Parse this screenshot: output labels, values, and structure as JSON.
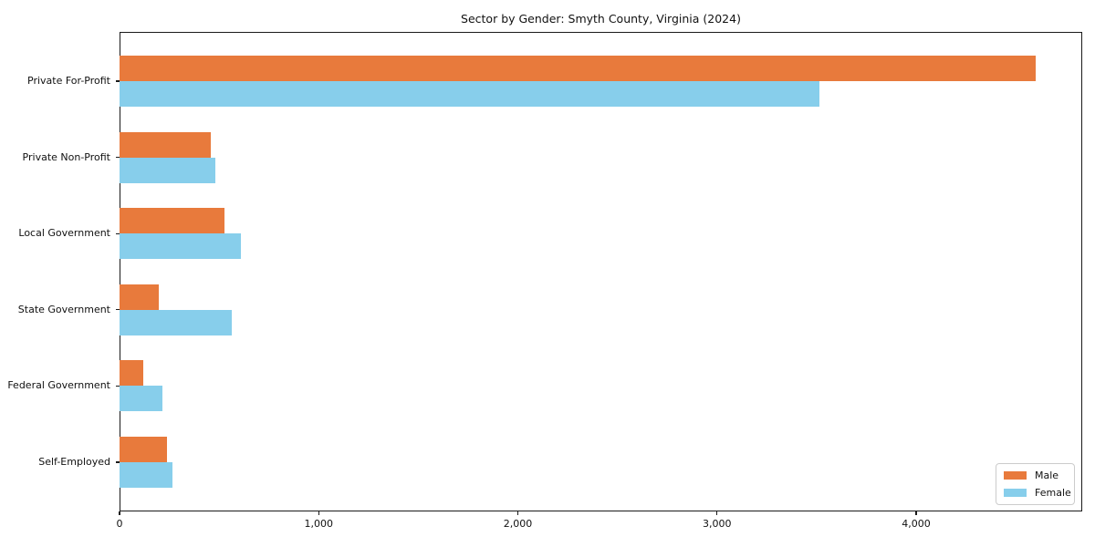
{
  "title": "Sector by Gender: Smyth County, Virginia (2024)",
  "chart_data": {
    "type": "bar",
    "orientation": "horizontal",
    "title": "Sector by Gender: Smyth County, Virginia (2024)",
    "xlabel": "",
    "ylabel": "",
    "categories": [
      "Private For-Profit",
      "Private Non-Profit",
      "Local Government",
      "State Government",
      "Federal Government",
      "Self-Employed"
    ],
    "series": [
      {
        "name": "Male",
        "color": "#e87a3c",
        "values": [
          4600,
          460,
          525,
          195,
          120,
          240
        ]
      },
      {
        "name": "Female",
        "color": "#87ceeb",
        "values": [
          3515,
          480,
          610,
          565,
          215,
          265
        ]
      }
    ],
    "xlim": [
      0,
      4834
    ],
    "xticks": [
      0,
      1000,
      2000,
      3000,
      4000
    ],
    "xtick_labels": [
      "0",
      "1,000",
      "2,000",
      "3,000",
      "4,000"
    ],
    "grid": false,
    "legend_position": "lower right"
  }
}
